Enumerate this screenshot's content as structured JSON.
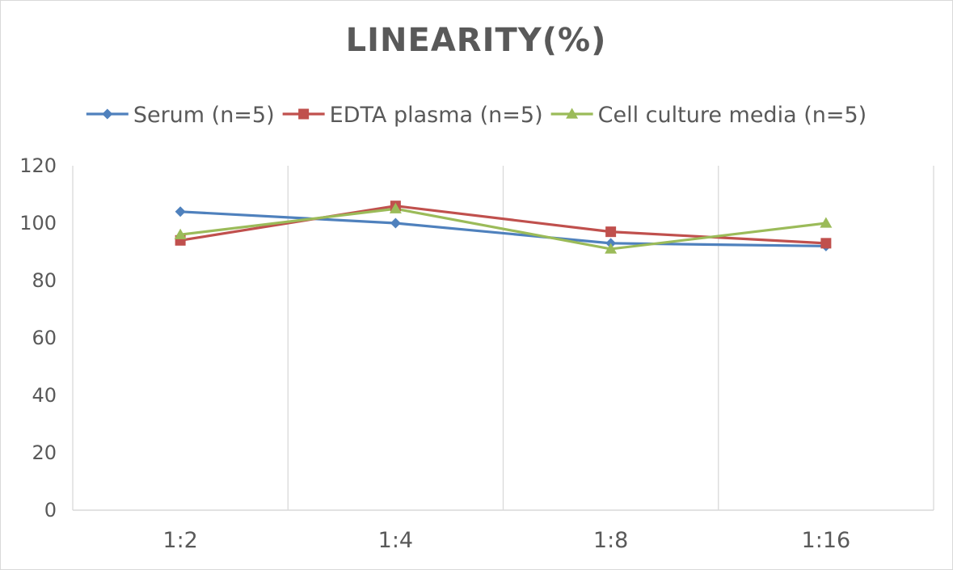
{
  "chart_data": {
    "type": "line",
    "title": "LINEARITY(%)",
    "xlabel": "",
    "ylabel": "",
    "categories": [
      "1:2",
      "1:4",
      "1:8",
      "1:16"
    ],
    "ylim": [
      0,
      120
    ],
    "yticks": [
      0,
      20,
      40,
      60,
      80,
      100,
      120
    ],
    "grid": "vertical",
    "legend_position": "top",
    "series": [
      {
        "name": "Serum (n=5)",
        "values": [
          104,
          100,
          93,
          92
        ],
        "color": "#4f81bd",
        "marker": "diamond"
      },
      {
        "name": "EDTA plasma (n=5)",
        "values": [
          94,
          106,
          97,
          93
        ],
        "color": "#c0504d",
        "marker": "square"
      },
      {
        "name": "Cell culture media (n=5)",
        "values": [
          96,
          105,
          91,
          100
        ],
        "color": "#9bbb59",
        "marker": "triangle"
      }
    ]
  }
}
